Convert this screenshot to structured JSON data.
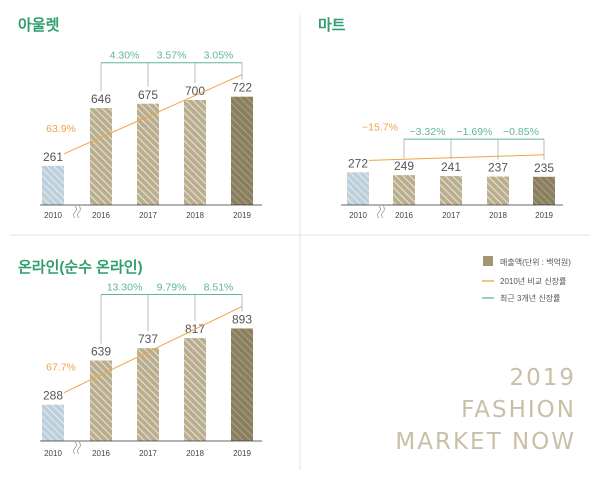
{
  "chart_data": [
    {
      "type": "bar",
      "title": "아울렛",
      "categories": [
        "2010",
        "2016",
        "2017",
        "2018",
        "2019"
      ],
      "values": [
        261,
        646,
        675,
        700,
        722
      ],
      "ylim": [
        0,
        760
      ],
      "axis_break_after": "2010",
      "growth_vs_2010": "63.9%",
      "yearly_growth": [
        {
          "from": "2016",
          "to": "2017",
          "label": "4.30%"
        },
        {
          "from": "2017",
          "to": "2018",
          "label": "3.57%"
        },
        {
          "from": "2018",
          "to": "2019",
          "label": "3.05%"
        }
      ]
    },
    {
      "type": "bar",
      "title": "마트",
      "categories": [
        "2010",
        "2016",
        "2017",
        "2018",
        "2019"
      ],
      "values": [
        272,
        249,
        241,
        237,
        235
      ],
      "ylim": [
        0,
        760
      ],
      "axis_break_after": "2010",
      "growth_vs_2010": "−15.7%",
      "yearly_growth": [
        {
          "from": "2016",
          "to": "2017",
          "label": "−3.32%"
        },
        {
          "from": "2017",
          "to": "2018",
          "label": "−1.69%"
        },
        {
          "from": "2018",
          "to": "2019",
          "label": "−0.85%"
        }
      ]
    },
    {
      "type": "bar",
      "title": "온라인(순수 온라인)",
      "categories": [
        "2010",
        "2016",
        "2017",
        "2018",
        "2019"
      ],
      "values": [
        288,
        639,
        737,
        817,
        893
      ],
      "ylim": [
        0,
        950
      ],
      "axis_break_after": "2010",
      "growth_vs_2010": "67.7%",
      "yearly_growth": [
        {
          "from": "2016",
          "to": "2017",
          "label": "13.30%"
        },
        {
          "from": "2017",
          "to": "2018",
          "label": "9.79%"
        },
        {
          "from": "2018",
          "to": "2019",
          "label": "8.51%"
        }
      ]
    }
  ],
  "legend": {
    "sales": "매출액(단위 : 백억원)",
    "growth_vs_2010": "2010년 비교 신장률",
    "growth_recent_3y": "최근 3개년 신장률"
  },
  "brand": {
    "line1": "2019",
    "line2": "FASHION",
    "line3": "MARKET NOW"
  },
  "colors": {
    "title_green": "#2f9e6e",
    "growth_orange": "#f0a246",
    "recent_green": "#5fb69a",
    "bar_base_2010": "#bccfdb",
    "bar_base": "#b9ae8f",
    "bar_hatch": "#ece5d3",
    "bar_last": "#8a7f5f",
    "bar_last_hatch": "#aba17f",
    "axis": "#333333",
    "divider": "#e3e3e3",
    "brand": "#c9bfa6"
  }
}
